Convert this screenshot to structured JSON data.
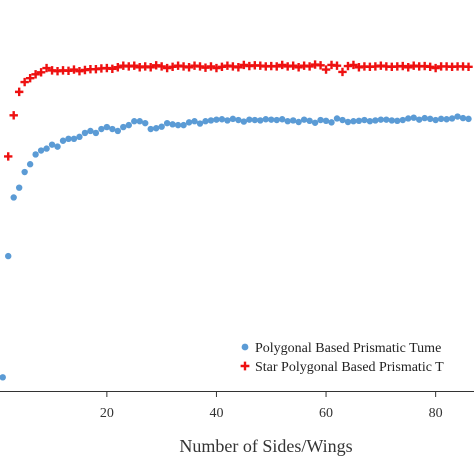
{
  "colors": {
    "background": "#ffffff",
    "axis": "#333333",
    "text": "#333333",
    "series_polygon": "#5b9bd5",
    "series_star": "#ee1111"
  },
  "chart_data": {
    "type": "scatter",
    "title": "",
    "xlabel": "Number of Sides/Wings",
    "ylabel": "",
    "xlim": [
      0.5,
      87
    ],
    "ylim": [
      0,
      1
    ],
    "x_ticks": [
      20,
      40,
      60,
      80
    ],
    "y_ticks": [],
    "grid": false,
    "legend_position": "bottom-right",
    "series": [
      {
        "name": "Polygonal Based Prismatic Tume",
        "marker": "circle",
        "color": "#5b9bd5",
        "points": [
          [
            1,
            0.035
          ],
          [
            2,
            0.345
          ],
          [
            3,
            0.495
          ],
          [
            4,
            0.52
          ],
          [
            5,
            0.56
          ],
          [
            6,
            0.58
          ],
          [
            7,
            0.605
          ],
          [
            8,
            0.615
          ],
          [
            9,
            0.62
          ],
          [
            10,
            0.63
          ],
          [
            11,
            0.625
          ],
          [
            12,
            0.64
          ],
          [
            13,
            0.645
          ],
          [
            14,
            0.645
          ],
          [
            15,
            0.65
          ],
          [
            16,
            0.66
          ],
          [
            17,
            0.665
          ],
          [
            18,
            0.66
          ],
          [
            19,
            0.67
          ],
          [
            20,
            0.675
          ],
          [
            21,
            0.67
          ],
          [
            22,
            0.665
          ],
          [
            23,
            0.675
          ],
          [
            24,
            0.68
          ],
          [
            25,
            0.69
          ],
          [
            26,
            0.69
          ],
          [
            27,
            0.685
          ],
          [
            28,
            0.67
          ],
          [
            29,
            0.672
          ],
          [
            30,
            0.676
          ],
          [
            31,
            0.685
          ],
          [
            32,
            0.682
          ],
          [
            33,
            0.68
          ],
          [
            34,
            0.68
          ],
          [
            35,
            0.687
          ],
          [
            36,
            0.69
          ],
          [
            37,
            0.684
          ],
          [
            38,
            0.69
          ],
          [
            39,
            0.692
          ],
          [
            40,
            0.694
          ],
          [
            41,
            0.695
          ],
          [
            42,
            0.692
          ],
          [
            43,
            0.696
          ],
          [
            44,
            0.693
          ],
          [
            45,
            0.689
          ],
          [
            46,
            0.694
          ],
          [
            47,
            0.693
          ],
          [
            48,
            0.692
          ],
          [
            49,
            0.695
          ],
          [
            50,
            0.694
          ],
          [
            51,
            0.693
          ],
          [
            52,
            0.695
          ],
          [
            53,
            0.69
          ],
          [
            54,
            0.692
          ],
          [
            55,
            0.688
          ],
          [
            56,
            0.694
          ],
          [
            57,
            0.691
          ],
          [
            58,
            0.686
          ],
          [
            59,
            0.693
          ],
          [
            60,
            0.691
          ],
          [
            61,
            0.687
          ],
          [
            62,
            0.697
          ],
          [
            63,
            0.693
          ],
          [
            64,
            0.688
          ],
          [
            65,
            0.69
          ],
          [
            66,
            0.691
          ],
          [
            67,
            0.693
          ],
          [
            68,
            0.69
          ],
          [
            69,
            0.692
          ],
          [
            70,
            0.694
          ],
          [
            71,
            0.694
          ],
          [
            72,
            0.692
          ],
          [
            73,
            0.691
          ],
          [
            74,
            0.693
          ],
          [
            75,
            0.697
          ],
          [
            76,
            0.699
          ],
          [
            77,
            0.694
          ],
          [
            78,
            0.698
          ],
          [
            79,
            0.696
          ],
          [
            80,
            0.693
          ],
          [
            81,
            0.696
          ],
          [
            82,
            0.695
          ],
          [
            83,
            0.697
          ],
          [
            84,
            0.702
          ],
          [
            85,
            0.698
          ],
          [
            86,
            0.696
          ]
        ]
      },
      {
        "name": "Star Polygonal Based Prismatic T",
        "marker": "plus",
        "color": "#ee1111",
        "points": [
          [
            2,
            0.6
          ],
          [
            3,
            0.705
          ],
          [
            4,
            0.765
          ],
          [
            5,
            0.79
          ],
          [
            6,
            0.8
          ],
          [
            7,
            0.81
          ],
          [
            8,
            0.815
          ],
          [
            9,
            0.826
          ],
          [
            10,
            0.82
          ],
          [
            11,
            0.818
          ],
          [
            12,
            0.82
          ],
          [
            13,
            0.819
          ],
          [
            14,
            0.822
          ],
          [
            15,
            0.818
          ],
          [
            16,
            0.821
          ],
          [
            17,
            0.823
          ],
          [
            18,
            0.823
          ],
          [
            19,
            0.825
          ],
          [
            20,
            0.826
          ],
          [
            21,
            0.824
          ],
          [
            22,
            0.828
          ],
          [
            23,
            0.832
          ],
          [
            24,
            0.83
          ],
          [
            25,
            0.832
          ],
          [
            26,
            0.828
          ],
          [
            27,
            0.83
          ],
          [
            28,
            0.828
          ],
          [
            29,
            0.833
          ],
          [
            30,
            0.83
          ],
          [
            31,
            0.826
          ],
          [
            32,
            0.829
          ],
          [
            33,
            0.832
          ],
          [
            34,
            0.83
          ],
          [
            35,
            0.828
          ],
          [
            36,
            0.832
          ],
          [
            37,
            0.83
          ],
          [
            38,
            0.827
          ],
          [
            39,
            0.83
          ],
          [
            40,
            0.826
          ],
          [
            41,
            0.829
          ],
          [
            42,
            0.832
          ],
          [
            43,
            0.83
          ],
          [
            44,
            0.828
          ],
          [
            45,
            0.834
          ],
          [
            46,
            0.831
          ],
          [
            47,
            0.833
          ],
          [
            48,
            0.832
          ],
          [
            49,
            0.83
          ],
          [
            50,
            0.831
          ],
          [
            51,
            0.83
          ],
          [
            52,
            0.834
          ],
          [
            53,
            0.83
          ],
          [
            54,
            0.832
          ],
          [
            55,
            0.828
          ],
          [
            56,
            0.832
          ],
          [
            57,
            0.83
          ],
          [
            58,
            0.835
          ],
          [
            59,
            0.833
          ],
          [
            60,
            0.822
          ],
          [
            61,
            0.834
          ],
          [
            62,
            0.832
          ],
          [
            63,
            0.816
          ],
          [
            64,
            0.831
          ],
          [
            65,
            0.834
          ],
          [
            66,
            0.828
          ],
          [
            67,
            0.83
          ],
          [
            68,
            0.829
          ],
          [
            69,
            0.83
          ],
          [
            70,
            0.832
          ],
          [
            71,
            0.83
          ],
          [
            72,
            0.829
          ],
          [
            73,
            0.83
          ],
          [
            74,
            0.831
          ],
          [
            75,
            0.828
          ],
          [
            76,
            0.832
          ],
          [
            77,
            0.83
          ],
          [
            78,
            0.831
          ],
          [
            79,
            0.829
          ],
          [
            80,
            0.826
          ],
          [
            81,
            0.83
          ],
          [
            82,
            0.83
          ],
          [
            83,
            0.829
          ],
          [
            84,
            0.83
          ],
          [
            85,
            0.83
          ],
          [
            86,
            0.829
          ]
        ]
      }
    ]
  }
}
